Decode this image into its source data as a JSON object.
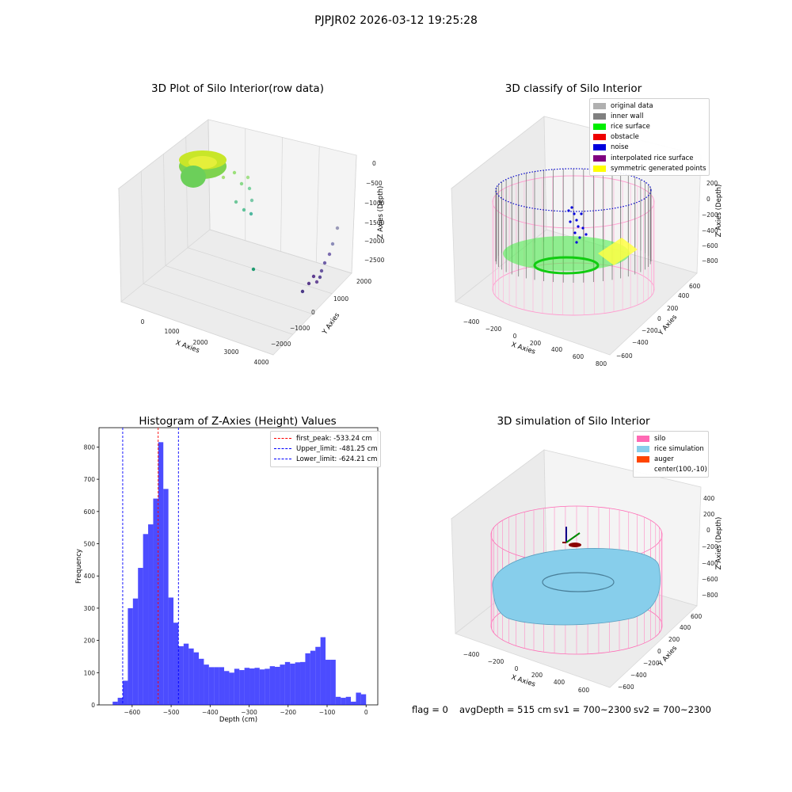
{
  "suptitle": "PJPJR02 2026-03-12 19:25:28",
  "panel_raw": {
    "title": "3D Plot of Silo Interior(row data)",
    "xlabel": "X Axies",
    "ylabel": "Y Axies",
    "zlabel": "Z Axies (Depth)",
    "xticks": [
      "0",
      "1000",
      "2000",
      "3000",
      "4000"
    ],
    "yticks": [
      "2000",
      "1000",
      "0",
      "−1000",
      "−2000"
    ],
    "zticks": [
      "0",
      "−500",
      "−1000",
      "−1500",
      "−2000",
      "−2500"
    ],
    "colors": {
      "surface_a": "#c8e629",
      "surface_b": "#7fd34e",
      "scatter": "#2a9d8f"
    }
  },
  "panel_classify": {
    "title": "3D classify of Silo Interior",
    "xlabel": "X Axies",
    "ylabel": "Y Axies",
    "zlabel": "Z Axies (Depth)",
    "xticks": [
      "−400",
      "−200",
      "0",
      "200",
      "400",
      "600",
      "800"
    ],
    "yticks": [
      "600",
      "400",
      "200",
      "0",
      "−200",
      "−400",
      "−600"
    ],
    "zticks": [
      "200",
      "0",
      "−200",
      "−400",
      "−600",
      "−800"
    ],
    "legend": [
      {
        "label": "original data",
        "color": "#b0b0b0"
      },
      {
        "label": "inner wall",
        "color": "#808080"
      },
      {
        "label": "rice surface",
        "color": "#00ee00"
      },
      {
        "label": "obstacle",
        "color": "#ee0000"
      },
      {
        "label": "noise",
        "color": "#0000dd"
      },
      {
        "label": "interpolated rice surface",
        "color": "#800080"
      },
      {
        "label": "symmetric generated points",
        "color": "#ffff00"
      }
    ]
  },
  "panel_sim": {
    "title": "3D simulation of Silo Interior",
    "xlabel": "X Axies",
    "ylabel": "Y Axies",
    "zlabel": "Z Axies (Depth)",
    "xticks": [
      "−400",
      "−200",
      "0",
      "200",
      "400",
      "600"
    ],
    "yticks": [
      "600",
      "400",
      "200",
      "0",
      "−200",
      "−400",
      "−600"
    ],
    "zticks": [
      "400",
      "200",
      "0",
      "−200",
      "−400",
      "−600",
      "−800"
    ],
    "legend": [
      {
        "label": "silo",
        "color": "#ff69b4"
      },
      {
        "label": "rice simulation",
        "color": "#87ceeb"
      },
      {
        "label": "auger",
        "color": "#ff4500"
      },
      {
        "label": "center(100,-10)",
        "color": ""
      }
    ]
  },
  "footer": {
    "flag": "flag = 0",
    "avg": "avgDepth = 515 cm",
    "sv1": "sv1 = 700~2300",
    "sv2": "sv2 = 700~2300"
  },
  "chart_data": [
    {
      "type": "bar",
      "title": "Histogram of Z-Axies (Height) Values",
      "xlabel": "Depth (cm)",
      "ylabel": "Frequency",
      "xlim": [
        -685,
        30
      ],
      "ylim": [
        0,
        860
      ],
      "bar_color": "#0000ff",
      "bin_width": 13,
      "bin_starts": [
        -650,
        -637,
        -624,
        -611,
        -598,
        -585,
        -572,
        -559,
        -546,
        -533,
        -520,
        -507,
        -494,
        -481,
        -468,
        -455,
        -442,
        -429,
        -416,
        -403,
        -390,
        -377,
        -364,
        -351,
        -338,
        -325,
        -312,
        -299,
        -286,
        -273,
        -260,
        -247,
        -234,
        -221,
        -208,
        -195,
        -182,
        -169,
        -156,
        -143,
        -130,
        -117,
        -104,
        -91,
        -78,
        -65,
        -52,
        -39,
        -26,
        -13
      ],
      "values": [
        10,
        22,
        75,
        300,
        330,
        425,
        530,
        560,
        640,
        815,
        670,
        333,
        255,
        182,
        190,
        175,
        163,
        143,
        125,
        117,
        117,
        117,
        105,
        100,
        112,
        108,
        115,
        113,
        115,
        110,
        112,
        120,
        118,
        125,
        133,
        128,
        132,
        133,
        160,
        168,
        180,
        210,
        140,
        140,
        25,
        22,
        25,
        10,
        38,
        33
      ],
      "xticks": [
        "−600",
        "−500",
        "−400",
        "−300",
        "−200",
        "−100",
        "0"
      ],
      "yticks": [
        "0",
        "100",
        "200",
        "300",
        "400",
        "500",
        "600",
        "700",
        "800"
      ],
      "vlines": [
        {
          "label": "first_peak: -533.24 cm",
          "x": -533.24,
          "color": "#ff0000"
        },
        {
          "label": "Upper_limit: -481.25 cm",
          "x": -481.25,
          "color": "#0000ff"
        },
        {
          "label": "Lower_limit: -624.21 cm",
          "x": -624.21,
          "color": "#0000ff"
        }
      ],
      "legend_position": "top-right"
    }
  ]
}
